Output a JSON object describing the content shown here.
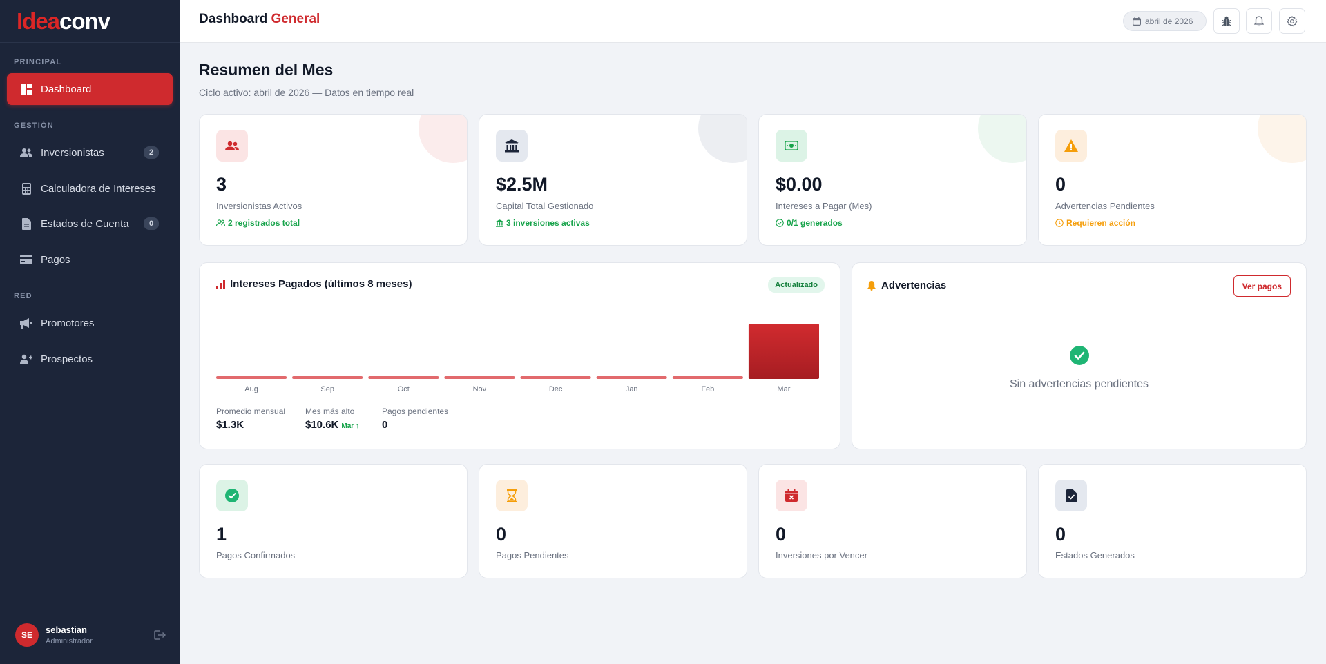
{
  "brand": {
    "part1": "Idea",
    "part2": "conv"
  },
  "sidebar": {
    "sections": {
      "principal": "PRINCIPAL",
      "gestion": "GESTIÓN",
      "red": "RED"
    },
    "items": [
      {
        "label": "Dashboard"
      },
      {
        "label": "Inversionistas",
        "badge": "2"
      },
      {
        "label": "Calculadora de Intereses"
      },
      {
        "label": "Estados de Cuenta",
        "badge": "0"
      },
      {
        "label": "Pagos"
      },
      {
        "label": "Promotores"
      },
      {
        "label": "Prospectos"
      }
    ],
    "user": {
      "initials": "SE",
      "name": "sebastian",
      "role": "Administrador"
    }
  },
  "header": {
    "title": "Dashboard",
    "title_accent": "General",
    "date": "abril de 2026"
  },
  "main": {
    "title": "Resumen del Mes",
    "subtitle": "Ciclo activo: abril de 2026 — Datos en tiempo real",
    "stats": [
      {
        "value": "3",
        "label": "Inversionistas Activos",
        "foot": "2 registrados total",
        "icon": "users-icon",
        "color": "#cf2a2e"
      },
      {
        "value": "$2.5M",
        "label": "Capital Total Gestionado",
        "foot": "3 inversiones activas",
        "icon": "bank-icon",
        "color": "#1c2539"
      },
      {
        "value": "$0.00",
        "label": "Intereses a Pagar (Mes)",
        "foot": "0/1 generados",
        "icon": "money-icon",
        "color": "#16a34a"
      },
      {
        "value": "0",
        "label": "Advertencias Pendientes",
        "foot": "Requieren acción",
        "icon": "warning-icon",
        "color": "#f59e0b"
      }
    ],
    "bottom_stats": [
      {
        "value": "1",
        "label": "Pagos Confirmados",
        "icon": "check-circle-icon"
      },
      {
        "value": "0",
        "label": "Pagos Pendientes",
        "icon": "hourglass-icon"
      },
      {
        "value": "0",
        "label": "Inversiones por Vencer",
        "icon": "calendar-x-icon"
      },
      {
        "value": "0",
        "label": "Estados Generados",
        "icon": "file-check-icon"
      }
    ]
  },
  "interests_card": {
    "title": "Intereses Pagados (últimos 8 meses)",
    "badge": "Actualizado",
    "summary": {
      "avg_label": "Promedio mensual",
      "avg_value": "$1.3K",
      "max_label": "Mes más alto",
      "max_value": "$10.6K",
      "max_month": "Mar ↑",
      "pending_label": "Pagos pendientes",
      "pending_value": "0"
    }
  },
  "chart_data": {
    "type": "bar",
    "categories": [
      "Aug",
      "Sep",
      "Oct",
      "Nov",
      "Dec",
      "Jan",
      "Feb",
      "Mar"
    ],
    "values": [
      0,
      0,
      0,
      0,
      0,
      0,
      0,
      10.6
    ],
    "ylim": [
      0,
      10.6
    ],
    "grid": false,
    "color": "#cf2a2e"
  },
  "alerts": {
    "title": "Advertencias",
    "button": "Ver pagos",
    "empty_text": "Sin advertencias pendientes"
  }
}
